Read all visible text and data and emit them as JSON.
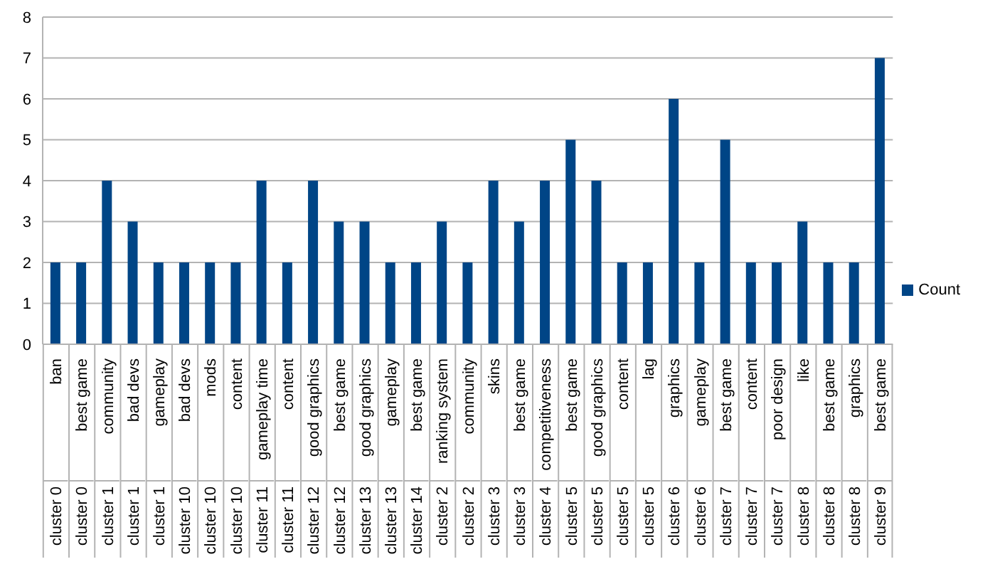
{
  "chart_data": {
    "type": "bar",
    "categories": [
      "ban",
      "best game",
      "community",
      "bad devs",
      "gameplay",
      "bad devs",
      "mods",
      "content",
      "gameplay time",
      "content",
      "good graphics",
      "best game",
      "good graphics",
      "gameplay",
      "best game",
      "ranking system",
      "community",
      "skins",
      "best game",
      "competitiveness",
      "best game",
      "good graphics",
      "content",
      "lag",
      "graphics",
      "gameplay",
      "best game",
      "content",
      "poor design",
      "like",
      "best game",
      "graphics",
      "best game"
    ],
    "annotations": [
      "cluster 0",
      "cluster 0",
      "cluster 1",
      "cluster 1",
      "cluster 1",
      "cluster 10",
      "cluster 10",
      "cluster 10",
      "cluster 11",
      "cluster 11",
      "cluster 12",
      "cluster 12",
      "cluster 13",
      "cluster 13",
      "cluster 14",
      "cluster 2",
      "cluster 2",
      "cluster 3",
      "cluster 3",
      "cluster 4",
      "cluster 5",
      "cluster 5",
      "cluster 5",
      "cluster 5",
      "cluster 6",
      "cluster 6",
      "cluster 7",
      "cluster 7",
      "cluster 7",
      "cluster 8",
      "cluster 8",
      "cluster 8",
      "cluster 9"
    ],
    "series": [
      {
        "name": "Count",
        "color": "#004586",
        "values": [
          2,
          2,
          4,
          3,
          2,
          2,
          2,
          2,
          4,
          2,
          4,
          3,
          3,
          2,
          2,
          3,
          2,
          4,
          3,
          4,
          5,
          4,
          2,
          2,
          6,
          2,
          5,
          2,
          2,
          3,
          2,
          2,
          7
        ]
      }
    ],
    "ylim": [
      0,
      8
    ],
    "yticks": [
      0,
      1,
      2,
      3,
      4,
      5,
      6,
      7,
      8
    ],
    "grid": "y",
    "legend": "right"
  }
}
